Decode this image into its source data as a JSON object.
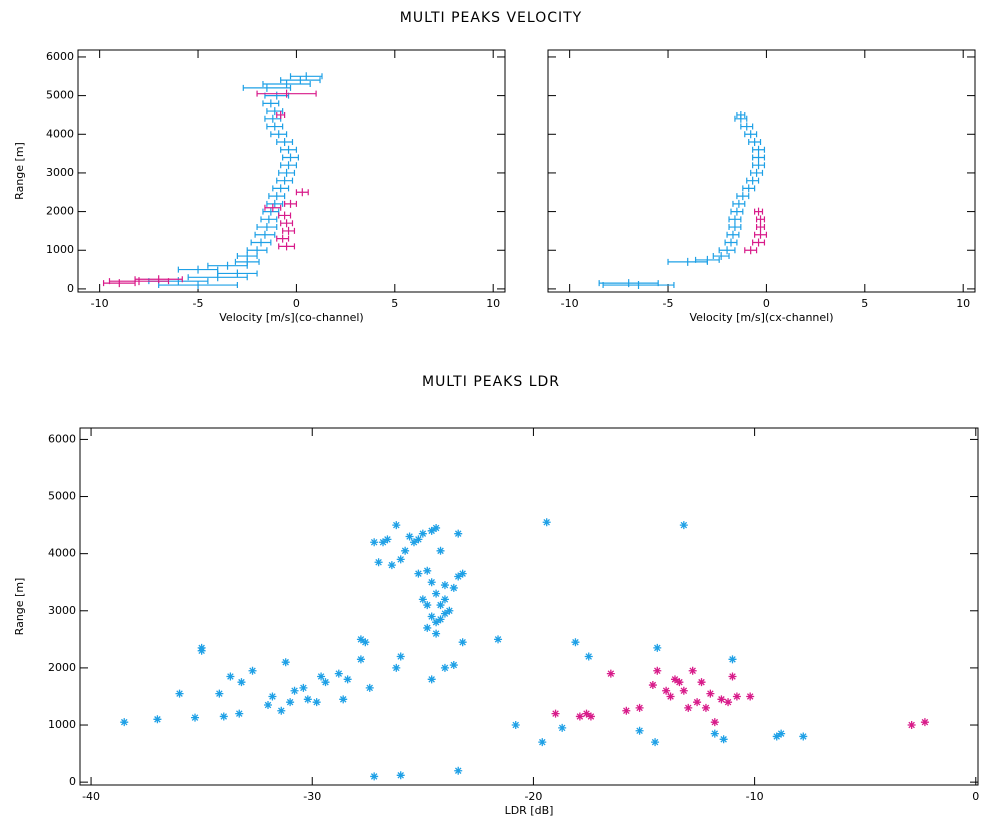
{
  "chart_data": [
    {
      "type": "scatter",
      "title": "MULTI PEAKS VELOCITY",
      "xlabel": "Velocity [m/s](co-channel)",
      "ylabel": "Range  [m]",
      "xlim": [
        -11.1,
        10.6
      ],
      "ylim": [
        -80,
        6180
      ],
      "xticks": [
        -10,
        -5,
        0,
        5,
        10
      ],
      "yticks": [
        0,
        1000,
        2000,
        3000,
        4000,
        5000,
        6000
      ],
      "show_ytick_labels": true,
      "marker": "errorbar",
      "series": [
        {
          "color": "#1ea0e6",
          "x": [
            -5,
            -6,
            -4,
            -3,
            -5,
            -3.5,
            -2.5,
            -2.5,
            -2.0,
            -1.8,
            -1.6,
            -1.5,
            -1.4,
            -1.3,
            -1.1,
            -1.0,
            -0.8,
            -0.6,
            -0.5,
            -0.4,
            -0.3,
            -0.4,
            -0.6,
            -0.9,
            -1.1,
            -1.2,
            -1.1,
            -1.3,
            -1.0,
            -1.5,
            -0.5,
            0.2,
            0.5
          ],
          "values": [
            100,
            200,
            300,
            400,
            500,
            600,
            700,
            850,
            1000,
            1200,
            1400,
            1600,
            1800,
            2000,
            2200,
            2400,
            2600,
            2800,
            3000,
            3200,
            3400,
            3600,
            3800,
            4000,
            4200,
            4400,
            4600,
            4800,
            5000,
            5200,
            5300,
            5400,
            5500
          ],
          "errors": [
            2,
            1.5,
            1.5,
            1,
            1,
            1,
            0.6,
            0.5,
            0.5,
            0.5,
            0.5,
            0.5,
            0.4,
            0.4,
            0.4,
            0.4,
            0.4,
            0.4,
            0.4,
            0.4,
            0.4,
            0.4,
            0.4,
            0.4,
            0.4,
            0.4,
            0.4,
            0.4,
            0.6,
            1.2,
            1.2,
            1.0,
            0.8
          ]
        },
        {
          "color": "#d81b8a",
          "x": [
            -8,
            -9,
            -7,
            -0.5,
            -0.7,
            -0.4,
            -0.5,
            -0.6,
            -1.2,
            -0.3,
            0.3,
            -0.8,
            -0.5
          ],
          "values": [
            200,
            150,
            250,
            1100,
            1300,
            1500,
            1700,
            1900,
            2100,
            2200,
            2500,
            4500,
            5050
          ],
          "errors": [
            1.5,
            0.8,
            1.2,
            0.4,
            0.3,
            0.3,
            0.3,
            0.3,
            0.4,
            0.3,
            0.3,
            0.2,
            1.5
          ]
        }
      ]
    },
    {
      "type": "scatter",
      "xlabel": "Velocity [m/s](cx-channel)",
      "xlim": [
        -11.1,
        10.6
      ],
      "ylim": [
        -80,
        6180
      ],
      "xticks": [
        -10,
        -5,
        0,
        5,
        10
      ],
      "yticks": [
        0,
        1000,
        2000,
        3000,
        4000,
        5000,
        6000
      ],
      "show_ytick_labels": false,
      "marker": "errorbar",
      "series": [
        {
          "color": "#1ea0e6",
          "x": [
            -6.5,
            -7,
            -4,
            -3,
            -2.3,
            -2,
            -1.8,
            -1.7,
            -1.6,
            -1.6,
            -1.5,
            -1.4,
            -1.2,
            -0.9,
            -0.7,
            -0.5,
            -0.4,
            -0.4,
            -0.4,
            -0.6,
            -0.8,
            -1.0,
            -1.3,
            -1.3
          ],
          "values": [
            100,
            150,
            700,
            750,
            850,
            1000,
            1200,
            1400,
            1600,
            1800,
            2000,
            2200,
            2400,
            2600,
            2800,
            3000,
            3200,
            3400,
            3600,
            3800,
            4000,
            4200,
            4400,
            4500
          ],
          "errors": [
            1.8,
            1.5,
            1.0,
            0.6,
            0.4,
            0.4,
            0.3,
            0.3,
            0.3,
            0.3,
            0.3,
            0.3,
            0.3,
            0.3,
            0.3,
            0.3,
            0.3,
            0.3,
            0.3,
            0.3,
            0.3,
            0.3,
            0.3,
            0.2
          ]
        },
        {
          "color": "#d81b8a",
          "x": [
            -0.8,
            -0.4,
            -0.3,
            -0.3,
            -0.3,
            -0.4
          ],
          "values": [
            1000,
            1200,
            1400,
            1600,
            1800,
            2000
          ],
          "errors": [
            0.3,
            0.3,
            0.3,
            0.2,
            0.2,
            0.2
          ]
        }
      ]
    },
    {
      "type": "scatter",
      "title": "MULTI PEAKS LDR",
      "xlabel": "LDR [dB]",
      "ylabel": "Range  [m]",
      "xlim": [
        -40.5,
        0.1
      ],
      "ylim": [
        -50,
        6200
      ],
      "xticks": [
        -40,
        -30,
        -20,
        -10,
        0
      ],
      "yticks": [
        0,
        1000,
        2000,
        3000,
        4000,
        5000,
        6000
      ],
      "show_ytick_labels": true,
      "marker": "asterisk",
      "series": [
        {
          "color": "#1ea0e6",
          "x": [
            -38.5,
            -37,
            -36,
            -35.3,
            -35,
            -35,
            -34,
            -34.2,
            -33.7,
            -33.3,
            -33.2,
            -32.7,
            -32,
            -31.8,
            -31.4,
            -31.2,
            -31,
            -30.8,
            -30.4,
            -30.2,
            -29.8,
            -29.6,
            -29.4,
            -28.8,
            -28.6,
            -28.4,
            -27.8,
            -27.8,
            -27.6,
            -27.4,
            -27.2,
            -27.0,
            -26.8,
            -26.6,
            -26.4,
            -26.2,
            -26.2,
            -26.0,
            -26,
            -25.8,
            -25.6,
            -25.4,
            -25.2,
            -25,
            -24.6,
            -24.4,
            -24.2,
            -24.8,
            -24.6,
            -24.4,
            -24.2,
            -24,
            -24.8,
            -24.6,
            -24.4,
            -24.2,
            -24,
            -23.8,
            -23.6,
            -23.4,
            -23.2,
            -23.4,
            -23.6,
            -24.0,
            -23.2,
            -24.6,
            -25.2,
            -25,
            -24.8,
            -24.4,
            -24,
            -27.2,
            -26.0,
            -23.4,
            -21.6,
            -20.8,
            -19.6,
            -19.4,
            -18.7,
            -18.1,
            -17.5,
            -15.2,
            -14.5,
            -14.4,
            -13.2,
            -11.8,
            -11.4,
            -11.0,
            -9,
            -8.8,
            -7.8
          ],
          "values": [
            1050,
            1100,
            1550,
            1130,
            2300,
            2350,
            1150,
            1550,
            1850,
            1200,
            1750,
            1950,
            1350,
            1500,
            1250,
            2100,
            1400,
            1600,
            1650,
            1450,
            1400,
            1850,
            1750,
            1900,
            1450,
            1800,
            2150,
            2500,
            2450,
            1650,
            4200,
            3850,
            4200,
            4250,
            3800,
            4500,
            2000,
            2200,
            3900,
            4050,
            4300,
            4200,
            4250,
            4350,
            4400,
            4450,
            4050,
            3700,
            3500,
            3300,
            3100,
            3200,
            3100,
            2900,
            2800,
            2850,
            2950,
            3000,
            3400,
            3600,
            3650,
            4350,
            2050,
            2000,
            2450,
            1800,
            3650,
            3200,
            2700,
            2600,
            3450,
            100,
            120,
            200,
            2500,
            1000,
            700,
            4550,
            950,
            2450,
            2200,
            900,
            700,
            2350,
            4500,
            850,
            750,
            2150,
            800,
            850,
            800
          ]
        },
        {
          "color": "#d81b8a",
          "x": [
            -19.0,
            -17.9,
            -17.6,
            -17.4,
            -16.5,
            -15.8,
            -15.2,
            -14.6,
            -14.4,
            -14,
            -13.8,
            -13.6,
            -13.4,
            -13.2,
            -13,
            -12.8,
            -12.6,
            -12.4,
            -12.2,
            -12,
            -11.8,
            -11.5,
            -11.2,
            -11,
            -10.8,
            -10.2,
            -2.9,
            -2.3
          ],
          "values": [
            1200,
            1150,
            1200,
            1150,
            1900,
            1250,
            1300,
            1700,
            1950,
            1600,
            1500,
            1800,
            1750,
            1600,
            1300,
            1950,
            1400,
            1750,
            1300,
            1550,
            1050,
            1450,
            1400,
            1850,
            1500,
            1500,
            1000,
            1050
          ]
        }
      ]
    }
  ]
}
